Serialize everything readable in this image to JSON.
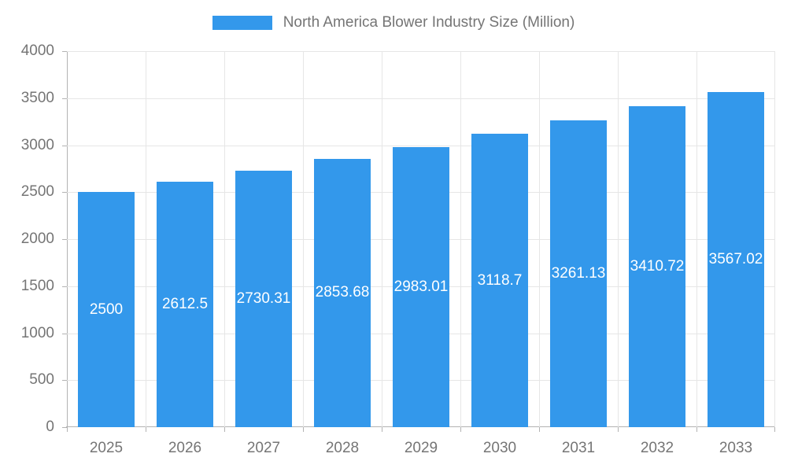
{
  "chart_data": {
    "type": "bar",
    "title": "North America Blower Industry Size (Million)",
    "categories": [
      "2025",
      "2026",
      "2027",
      "2028",
      "2029",
      "2030",
      "2031",
      "2032",
      "2033"
    ],
    "values": [
      2500,
      2612.5,
      2730.31,
      2853.68,
      2983.01,
      3118.7,
      3261.13,
      3410.72,
      3567.02
    ],
    "value_labels": [
      "2500",
      "2612.5",
      "2730.31",
      "2853.68",
      "2983.01",
      "3118.7",
      "3261.13",
      "3410.72",
      "3567.02"
    ],
    "xlabel": "",
    "ylabel": "",
    "ylim": [
      0,
      4000
    ],
    "ytick_step": 500,
    "grid": true,
    "legend_position": "top",
    "bar_color": "#3398eb",
    "value_label_color": "#ffffff"
  },
  "style_colors": {
    "axis_text": "#757575",
    "grid_line": "#e6e6e6",
    "axis_line": "#b3b3b3",
    "background": "#ffffff"
  }
}
